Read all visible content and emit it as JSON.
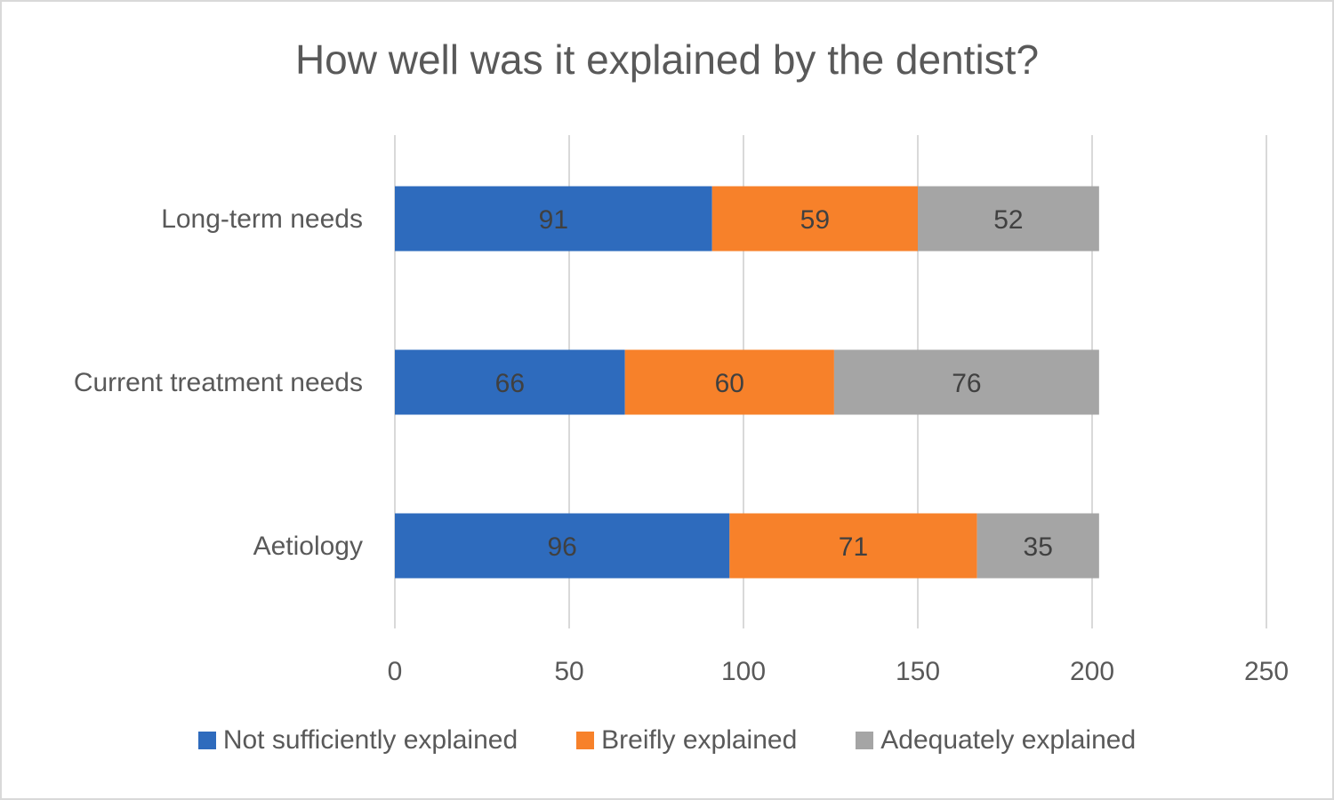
{
  "chart_data": {
    "type": "bar",
    "orientation": "horizontal",
    "stacked": true,
    "title": "How well was it explained by the dentist?",
    "xlabel": "",
    "ylabel": "",
    "categories": [
      "Long-term needs",
      "Current treatment needs",
      "Aetiology"
    ],
    "series": [
      {
        "name": "Not sufficiently explained",
        "color": "#2e6bbd",
        "values": [
          91,
          66,
          96
        ]
      },
      {
        "name": "Breifly explained",
        "color": "#f7812a",
        "values": [
          59,
          60,
          71
        ]
      },
      {
        "name": "Adequately explained",
        "color": "#a5a5a5",
        "values": [
          52,
          76,
          35
        ]
      }
    ],
    "xlim": [
      0,
      250
    ],
    "xticks": [
      "0",
      "50",
      "100",
      "150",
      "200",
      "250"
    ],
    "grid": true,
    "legend_position": "bottom"
  }
}
